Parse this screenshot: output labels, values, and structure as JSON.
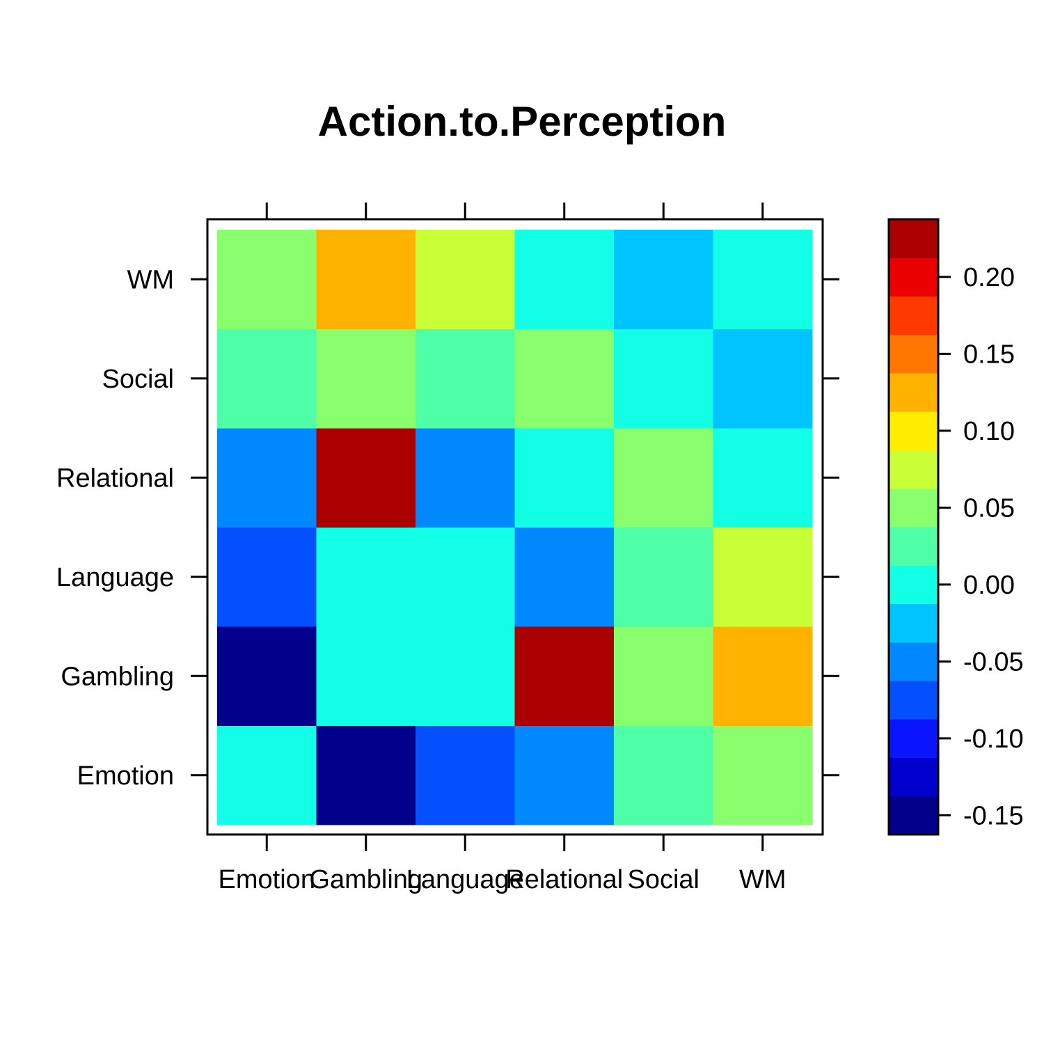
{
  "chart_data": {
    "type": "heatmap",
    "title": "Action.to.Perception",
    "xlabel": "",
    "ylabel": "",
    "x_categories": [
      "Emotion",
      "Gambling",
      "Language",
      "Relational",
      "Social",
      "WM"
    ],
    "y_categories": [
      "Emotion",
      "Gambling",
      "Language",
      "Relational",
      "Social",
      "WM"
    ],
    "values": [
      [
        0.0,
        -0.15,
        -0.075,
        -0.05,
        0.025,
        0.05
      ],
      [
        -0.15,
        0.0,
        0.0,
        0.225,
        0.05,
        0.125
      ],
      [
        -0.075,
        0.0,
        0.0,
        -0.05,
        0.025,
        0.075
      ],
      [
        -0.05,
        0.225,
        -0.05,
        0.0,
        0.05,
        0.0
      ],
      [
        0.025,
        0.05,
        0.025,
        0.05,
        0.0,
        -0.025
      ],
      [
        0.05,
        0.125,
        0.075,
        0.0,
        -0.025,
        0.0
      ]
    ],
    "colorbar": {
      "breaks": [
        -0.1625,
        -0.1375,
        -0.1125,
        -0.0875,
        -0.0625,
        -0.0375,
        -0.0125,
        0.0125,
        0.0375,
        0.0625,
        0.0875,
        0.1125,
        0.1375,
        0.1625,
        0.1875,
        0.2125,
        0.2375
      ],
      "colors": [
        "#00008B",
        "#0000CD",
        "#0A14FF",
        "#0450FF",
        "#0088FF",
        "#00C4FF",
        "#12FFE5",
        "#4FFFA8",
        "#8AFF6E",
        "#C8FF36",
        "#FFED00",
        "#FFB300",
        "#FF7600",
        "#FF3A00",
        "#EA0000",
        "#AB0000"
      ],
      "tick_values": [
        -0.15,
        -0.1,
        -0.05,
        0.0,
        0.05,
        0.1,
        0.15,
        0.2
      ],
      "tick_labels": [
        "-0.15",
        "-0.10",
        "-0.05",
        "0.00",
        "0.05",
        "0.10",
        "0.15",
        "0.20"
      ]
    },
    "grid": false,
    "legend": "colorbar-right"
  }
}
